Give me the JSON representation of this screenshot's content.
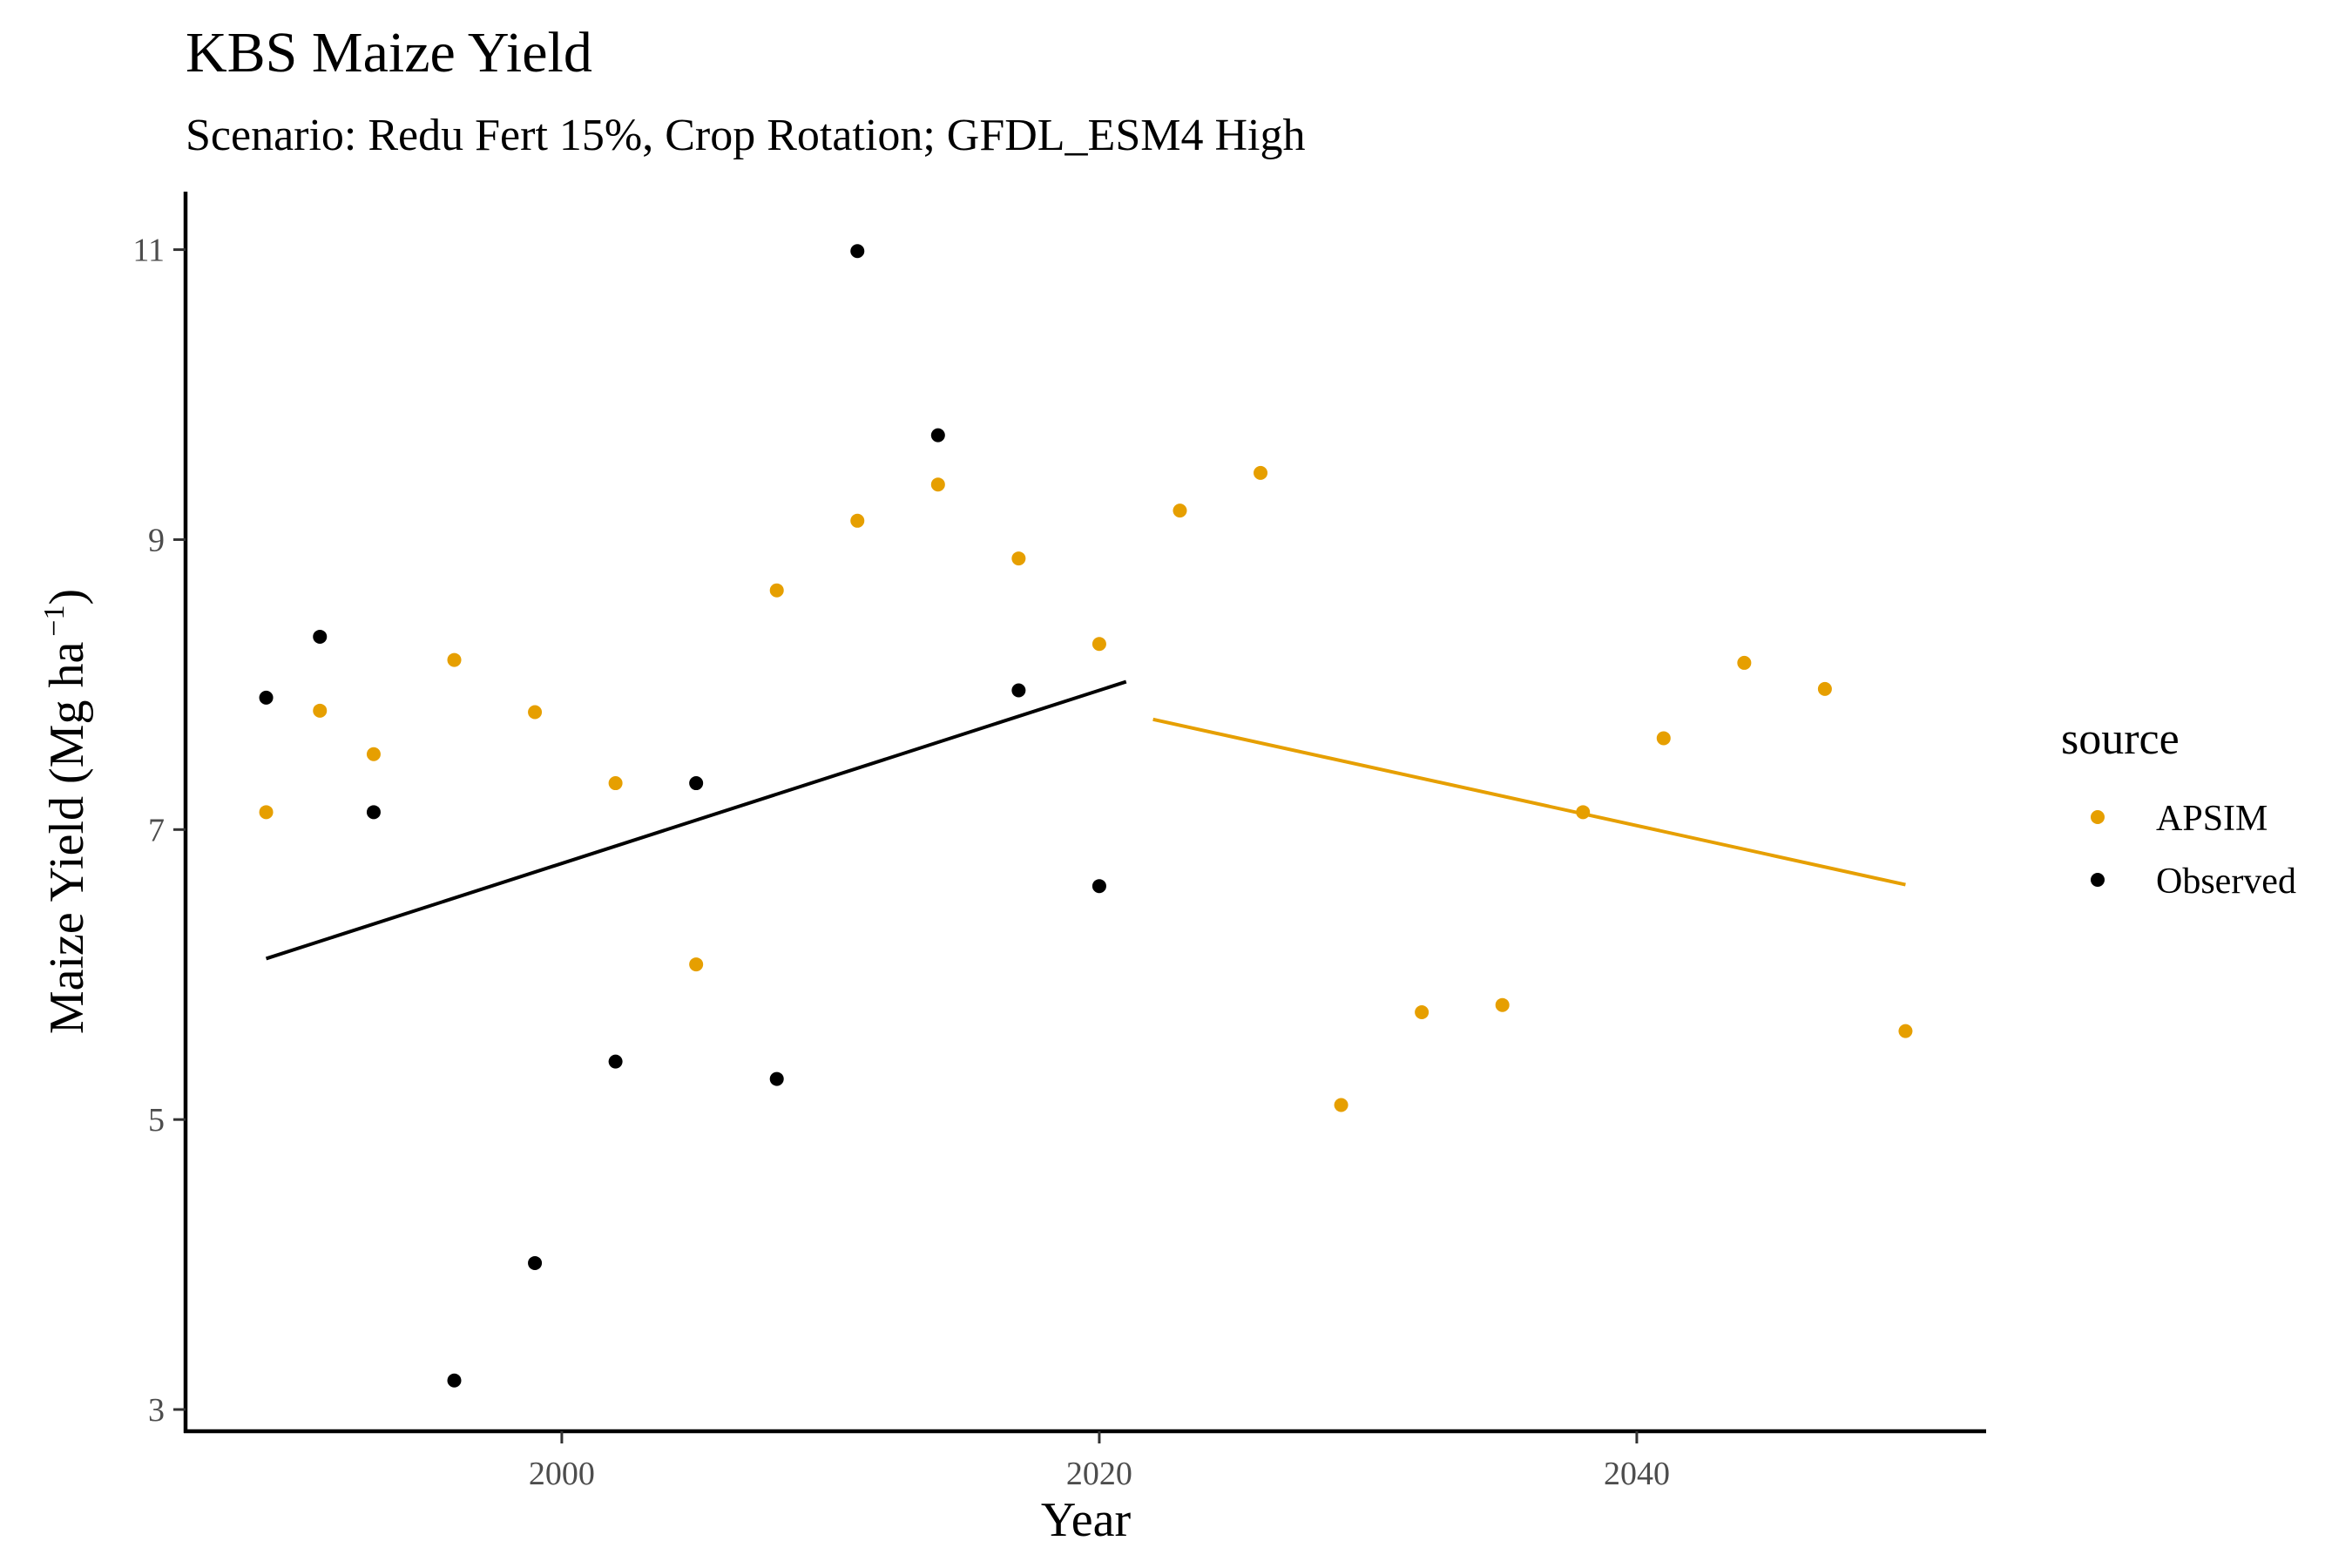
{
  "chart_data": {
    "type": "scatter",
    "title": "KBS Maize Yield",
    "subtitle": "Scenario: Redu Fert 15%, Crop Rotation; GFDL_ESM4 High",
    "xlabel": "Year",
    "ylabel_main": "Maize Yield (Mg ha",
    "ylabel_sup": "−1",
    "ylabel_close": ")",
    "xlim": [
      1986,
      2053
    ],
    "ylim": [
      2.85,
      11.4
    ],
    "x_ticks": [
      2000,
      2020,
      2040
    ],
    "x_tick_labels": [
      "2000",
      "2020",
      "2040"
    ],
    "y_ticks": [
      3,
      5,
      7,
      9,
      11
    ],
    "y_tick_labels": [
      "3",
      "5",
      "7",
      "9",
      "11"
    ],
    "legend": {
      "title": "source",
      "position": "right",
      "items": [
        {
          "label": "APSIM",
          "color": "#E69F00"
        },
        {
          "label": "Observed",
          "color": "#000000"
        }
      ]
    },
    "series": [
      {
        "name": "APSIM",
        "color": "#E69F00",
        "points": [
          [
            1989,
            7.12
          ],
          [
            1991,
            7.82
          ],
          [
            1993,
            7.52
          ],
          [
            1996,
            8.17
          ],
          [
            1999,
            7.81
          ],
          [
            2002,
            7.32
          ],
          [
            2005,
            6.07
          ],
          [
            2008,
            8.65
          ],
          [
            2011,
            9.13
          ],
          [
            2014,
            9.38
          ],
          [
            2017,
            8.87
          ],
          [
            2020,
            8.28
          ],
          [
            2023,
            9.2
          ],
          [
            2026,
            9.46
          ],
          [
            2029,
            5.1
          ],
          [
            2032,
            5.74
          ],
          [
            2035,
            5.79
          ],
          [
            2038,
            7.12
          ],
          [
            2041,
            7.63
          ],
          [
            2044,
            8.15
          ],
          [
            2047,
            7.97
          ],
          [
            2050,
            5.61
          ]
        ],
        "trend": [
          [
            2022,
            7.76
          ],
          [
            2050,
            6.62
          ]
        ]
      },
      {
        "name": "Observed",
        "color": "#000000",
        "points": [
          [
            1989,
            7.91
          ],
          [
            1991,
            8.33
          ],
          [
            1993,
            7.12
          ],
          [
            1996,
            3.2
          ],
          [
            1999,
            4.01
          ],
          [
            2002,
            5.4
          ],
          [
            2005,
            7.32
          ],
          [
            2008,
            5.28
          ],
          [
            2011,
            10.99
          ],
          [
            2014,
            9.72
          ],
          [
            2017,
            7.96
          ],
          [
            2020,
            6.61
          ]
        ],
        "trend": [
          [
            1989,
            6.11
          ],
          [
            2021,
            8.02
          ]
        ]
      }
    ]
  }
}
